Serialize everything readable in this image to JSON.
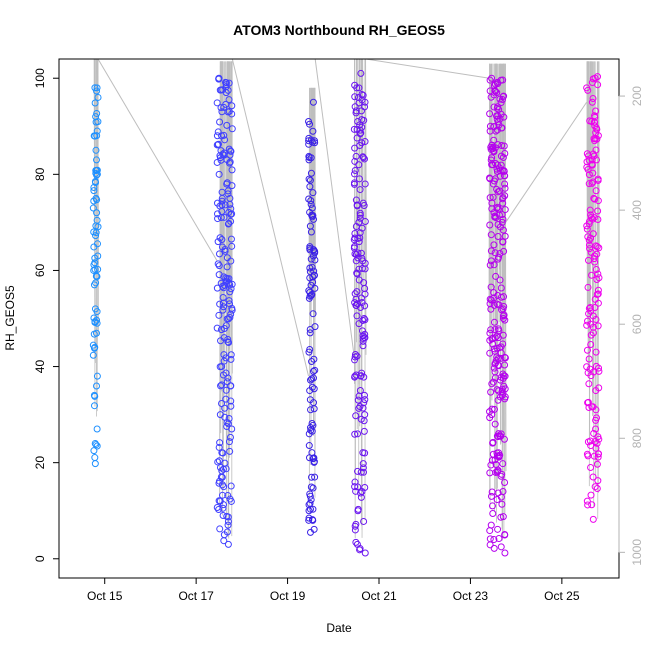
{
  "chart_data": {
    "type": "scatter",
    "title": "ATOM3 Northbound RH_GEOS5",
    "xlabel": "Date",
    "ylabel": "RH_GEOS5",
    "xlim": [
      "2017-10-14T00:00",
      "2017-10-26T06:00"
    ],
    "ylim": [
      -4,
      104
    ],
    "x_ticks": [
      {
        "date": "2017-10-15",
        "label": "Oct 15"
      },
      {
        "date": "2017-10-17",
        "label": "Oct 17"
      },
      {
        "date": "2017-10-19",
        "label": "Oct 19"
      },
      {
        "date": "2017-10-21",
        "label": "Oct 21"
      },
      {
        "date": "2017-10-23",
        "label": "Oct 23"
      },
      {
        "date": "2017-10-25",
        "label": "Oct 25"
      }
    ],
    "y_ticks": [
      0,
      20,
      40,
      60,
      80,
      100
    ],
    "secondary_axis": {
      "side": "right",
      "color": "#b3b3b3",
      "label": "",
      "lim": [
        1045,
        135
      ],
      "ticks": [
        200,
        400,
        600,
        800,
        1000
      ]
    },
    "profile_line_color": "#bebebe",
    "marker": "open-circle",
    "flights": [
      {
        "color": "#1e90ff",
        "start": "2017-10-14T18:00",
        "end": "2017-10-14T20:30",
        "rh_min": 19.8,
        "rh_max": 101,
        "n": 75,
        "sample_rh": [
          98,
          96,
          92,
          88,
          85,
          83,
          80,
          75,
          72,
          68,
          63,
          60,
          57,
          52,
          49,
          44,
          38,
          34,
          27,
          24,
          19.8
        ]
      },
      {
        "color": "#4040ff",
        "start": "2017-10-17T11:00",
        "end": "2017-10-17T19:00",
        "rh_min": 2.5,
        "rh_max": 100.5,
        "n": 200,
        "sample_rh": [
          100,
          97,
          93,
          88,
          84,
          80,
          75,
          71,
          66,
          61,
          57,
          53,
          48,
          45,
          40,
          36,
          30,
          27,
          22,
          19,
          15,
          12,
          9,
          7,
          5,
          3
        ]
      },
      {
        "color": "#3a22e6",
        "start": "2017-10-19T11:00",
        "end": "2017-10-19T14:30",
        "rh_min": 5.5,
        "rh_max": 95,
        "n": 110,
        "sample_rh": [
          95,
          91,
          87,
          83,
          79,
          73,
          68,
          63,
          59,
          55,
          51,
          47,
          43,
          39,
          35,
          31,
          26,
          21,
          17,
          13,
          10,
          8,
          5.5
        ]
      },
      {
        "color": "#6b16f0",
        "start": "2017-10-20T11:00",
        "end": "2017-10-20T17:00",
        "rh_min": 1.2,
        "rh_max": 101,
        "n": 160,
        "sample_rh": [
          101,
          96,
          91,
          86,
          82,
          78,
          74,
          70,
          66,
          62,
          58,
          54,
          50,
          46,
          42,
          38,
          34,
          30,
          26,
          22,
          18,
          14,
          10,
          6,
          3,
          1.2
        ]
      },
      {
        "color": "#b400ee",
        "start": "2017-10-23T10:00",
        "end": "2017-10-23T18:30",
        "rh_min": 1.2,
        "rh_max": 100,
        "n": 260,
        "sample_rh": [
          100,
          97,
          94,
          90,
          86,
          82,
          78,
          74,
          70,
          66,
          62,
          58,
          54,
          50,
          46,
          42,
          38,
          34,
          30,
          26,
          22,
          18,
          14,
          11,
          7,
          4,
          1.2
        ]
      },
      {
        "color": "#ee00ee",
        "start": "2017-10-25T13:00",
        "end": "2017-10-25T19:30",
        "rh_min": 8.2,
        "rh_max": 100.5,
        "n": 150,
        "sample_rh": [
          100,
          98,
          95,
          91,
          87,
          83,
          79,
          75,
          71,
          67,
          63,
          59,
          55,
          51,
          47,
          43,
          39,
          35,
          31,
          27,
          23,
          19,
          15,
          12,
          8.2
        ]
      }
    ]
  }
}
